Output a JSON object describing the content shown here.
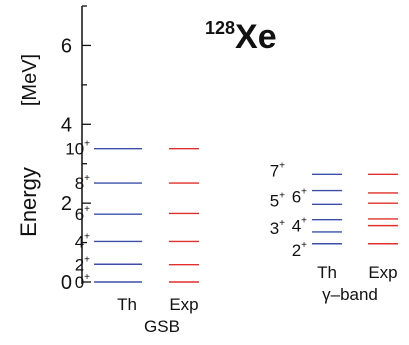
{
  "chart_data": {
    "type": "level-scheme",
    "title": {
      "mass": "128",
      "element": "Xe"
    },
    "ylabel": "Energy",
    "yunit": "[MeV]",
    "ylim": [
      0,
      7
    ],
    "yticks": [
      0,
      2,
      4,
      6
    ],
    "groups": [
      {
        "name": "GSB",
        "levels": [
          {
            "label": "0",
            "parity": "+",
            "th": 0.0,
            "exp": 0.0
          },
          {
            "label": "2",
            "parity": "+",
            "th": 0.45,
            "exp": 0.44
          },
          {
            "label": "4",
            "parity": "+",
            "th": 1.03,
            "exp": 1.03
          },
          {
            "label": "6",
            "parity": "+",
            "th": 1.72,
            "exp": 1.74
          },
          {
            "label": "8",
            "parity": "+",
            "th": 2.51,
            "exp": 2.51
          },
          {
            "label": "10",
            "parity": "+",
            "th": 3.38,
            "exp": 3.38
          }
        ],
        "columns": [
          "Th",
          "Exp"
        ]
      },
      {
        "name": "γ–band",
        "levels": [
          {
            "label": "2",
            "parity": "+",
            "th": 0.97,
            "exp": 0.97
          },
          {
            "label": "3",
            "parity": "+",
            "th": 1.27,
            "exp": 1.43
          },
          {
            "label": "4",
            "parity": "+",
            "th": 1.58,
            "exp": 1.6
          },
          {
            "label": "5",
            "parity": "+",
            "th": 1.97,
            "exp": 2.0
          },
          {
            "label": "6",
            "parity": "+",
            "th": 2.32,
            "exp": 2.26
          },
          {
            "label": "7",
            "parity": "+",
            "th": 2.73,
            "exp": 2.73
          }
        ],
        "columns": [
          "Th",
          "Exp"
        ]
      }
    ],
    "colors": {
      "th": "#3b4fa8",
      "exp": "#e0302b",
      "axis": "#111111"
    }
  }
}
